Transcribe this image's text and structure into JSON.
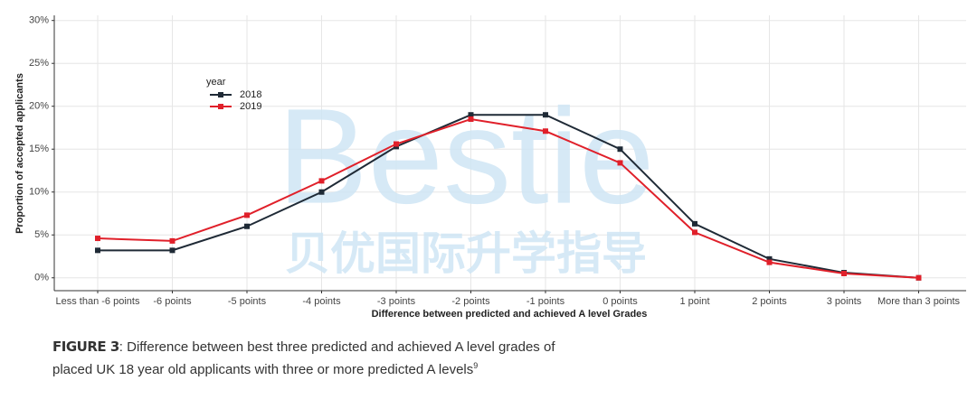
{
  "chart_data": {
    "type": "line",
    "x_label": "Difference between predicted and achieved A level Grades",
    "y_label": "Proportion of accepted applicants",
    "legend_title": "year",
    "legend_position": "upper left",
    "grid": true,
    "categories": [
      "Less than -6 points",
      "-6 points",
      "-5 points",
      "-4 points",
      "-3 points",
      "-2 points",
      "-1 points",
      "0 points",
      "1 point",
      "2 points",
      "3 points",
      "More than 3 points"
    ],
    "series": [
      {
        "name": "2018",
        "color": "#1f2a36",
        "values": [
          3.2,
          3.2,
          6.0,
          10.0,
          15.3,
          19.0,
          19.0,
          15.0,
          6.3,
          2.2,
          0.6,
          0.0
        ]
      },
      {
        "name": "2019",
        "color": "#e0202a",
        "values": [
          4.6,
          4.3,
          7.3,
          11.3,
          15.6,
          18.5,
          17.1,
          13.4,
          5.3,
          1.8,
          0.5,
          0.0
        ]
      }
    ],
    "ylim": [
      -1.5,
      30.6
    ],
    "yticks": [
      {
        "value": 0,
        "label": "0%"
      },
      {
        "value": 5,
        "label": "5%"
      },
      {
        "value": 10,
        "label": "10%"
      },
      {
        "value": 15,
        "label": "15%"
      },
      {
        "value": 20,
        "label": "20%"
      },
      {
        "value": 25,
        "label": "25%"
      },
      {
        "value": 30,
        "label": "30%"
      }
    ],
    "watermark": {
      "text": "Bestie",
      "subtext": "贝优国际升学指导"
    }
  },
  "caption": {
    "label": "FIGURE 3",
    "lines": [
      ": Difference between best three predicted and achieved A level grades of",
      "placed UK 18 year old applicants with three or more predicted A levels"
    ],
    "superscript": "9"
  }
}
